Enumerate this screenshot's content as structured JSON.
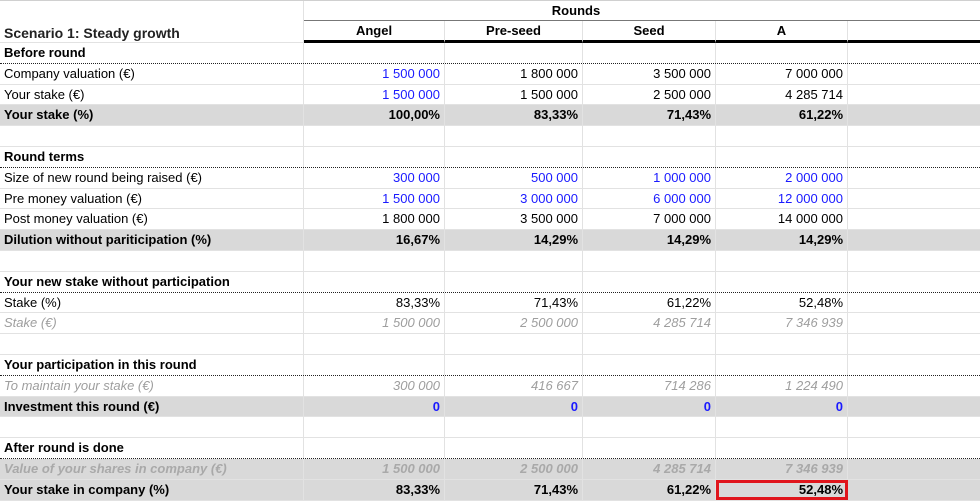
{
  "sheet": {
    "title": "Scenario 1: Steady growth",
    "group_header": "Rounds",
    "columns": [
      "Angel",
      "Pre-seed",
      "Seed",
      "A"
    ],
    "colors": {
      "input_blue": "#1a1aff",
      "band_gray": "#d9d9d9",
      "highlight_red": "#e0151c",
      "muted_gray": "#9e9e9e"
    }
  },
  "rows": {
    "before_round": {
      "label": "Before round"
    },
    "company_valuation": {
      "label": "Company valuation (€)",
      "values": [
        "1 500 000",
        "1 800 000",
        "3 500 000",
        "7 000 000"
      ]
    },
    "your_stake_eur": {
      "label": "Your stake (€)",
      "values": [
        "1 500 000",
        "1 500 000",
        "2 500 000",
        "4 285 714"
      ]
    },
    "your_stake_pct": {
      "label": "Your stake (%)",
      "values": [
        "100,00%",
        "83,33%",
        "71,43%",
        "61,22%"
      ]
    },
    "round_terms": {
      "label": "Round terms"
    },
    "size_new_round": {
      "label": "Size of new round being raised (€)",
      "values": [
        "300 000",
        "500 000",
        "1 000 000",
        "2 000 000"
      ]
    },
    "pre_money": {
      "label": "Pre money valuation (€)",
      "values": [
        "1 500 000",
        "3 000 000",
        "6 000 000",
        "12 000 000"
      ]
    },
    "post_money": {
      "label": "Post money valuation (€)",
      "values": [
        "1 800 000",
        "3 500 000",
        "7 000 000",
        "14 000 000"
      ]
    },
    "dilution": {
      "label": "Dilution without pariticipation (%)",
      "values": [
        "16,67%",
        "14,29%",
        "14,29%",
        "14,29%"
      ]
    },
    "new_stake_section": {
      "label": "Your new stake without participation"
    },
    "stake_pct": {
      "label": "Stake (%)",
      "values": [
        "83,33%",
        "71,43%",
        "61,22%",
        "52,48%"
      ]
    },
    "stake_eur": {
      "label": "Stake (€)",
      "values": [
        "1 500 000",
        "2 500 000",
        "4 285 714",
        "7 346 939"
      ]
    },
    "participation_section": {
      "label": "Your participation in this round"
    },
    "to_maintain": {
      "label": "To maintain your stake (€)",
      "values": [
        "300 000",
        "416 667",
        "714 286",
        "1 224 490"
      ]
    },
    "investment": {
      "label": "Investment this round (€)",
      "values": [
        "0",
        "0",
        "0",
        "0"
      ]
    },
    "after_round": {
      "label": "After round is done"
    },
    "value_shares": {
      "label": "Value of your shares in company (€)",
      "values": [
        "1 500 000",
        "2 500 000",
        "4 285 714",
        "7 346 939"
      ]
    },
    "final_stake": {
      "label": "Your stake in company (%)",
      "values": [
        "83,33%",
        "71,43%",
        "61,22%",
        "52,48%"
      ]
    }
  }
}
